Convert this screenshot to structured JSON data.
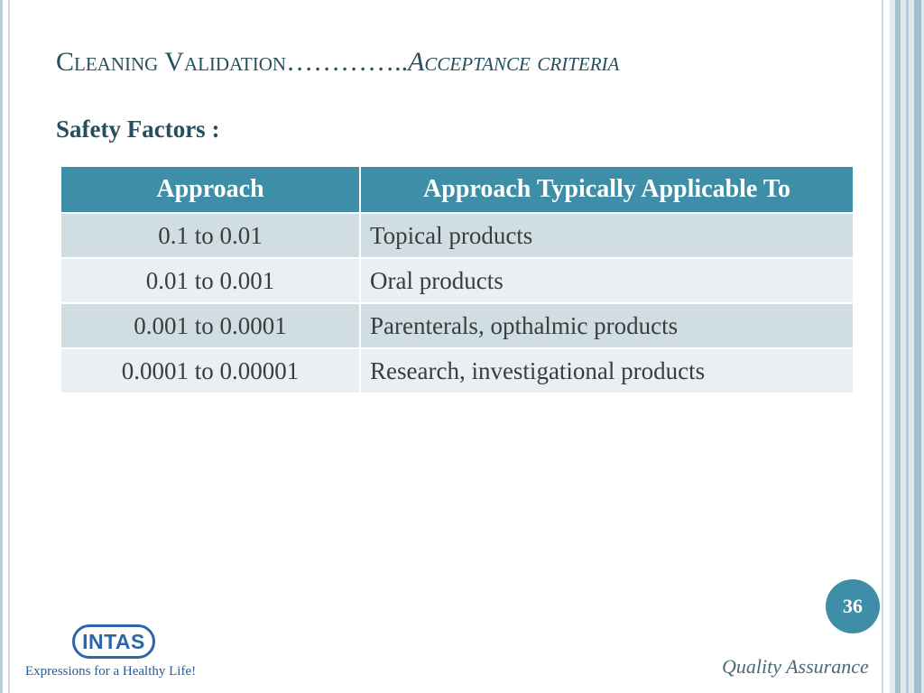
{
  "slide": {
    "title_main": "Cleaning Validation",
    "title_dots": "…………..",
    "title_sub": "Acceptance criteria",
    "subtitle": "Safety Factors :",
    "table": {
      "headers": [
        "Approach",
        "Approach Typically Applicable To"
      ],
      "rows": [
        [
          "0.1 to 0.01",
          "Topical products"
        ],
        [
          "0.01 to 0.001",
          "Oral products"
        ],
        [
          "0.001 to 0.0001",
          "Parenterals, opthalmic products"
        ],
        [
          "0.0001 to 0.00001",
          "Research, investigational products"
        ]
      ]
    },
    "page_number": "36",
    "logo_text": "INTAS",
    "tagline": "Expressions for a Healthy Life!",
    "footer_label": "Quality Assurance"
  },
  "colors": {
    "title": "#264f5d",
    "header_bg": "#3d8ea6",
    "row_dark": "#d0dde3",
    "row_light": "#e9eff2",
    "logo_blue": "#2a66a8"
  }
}
